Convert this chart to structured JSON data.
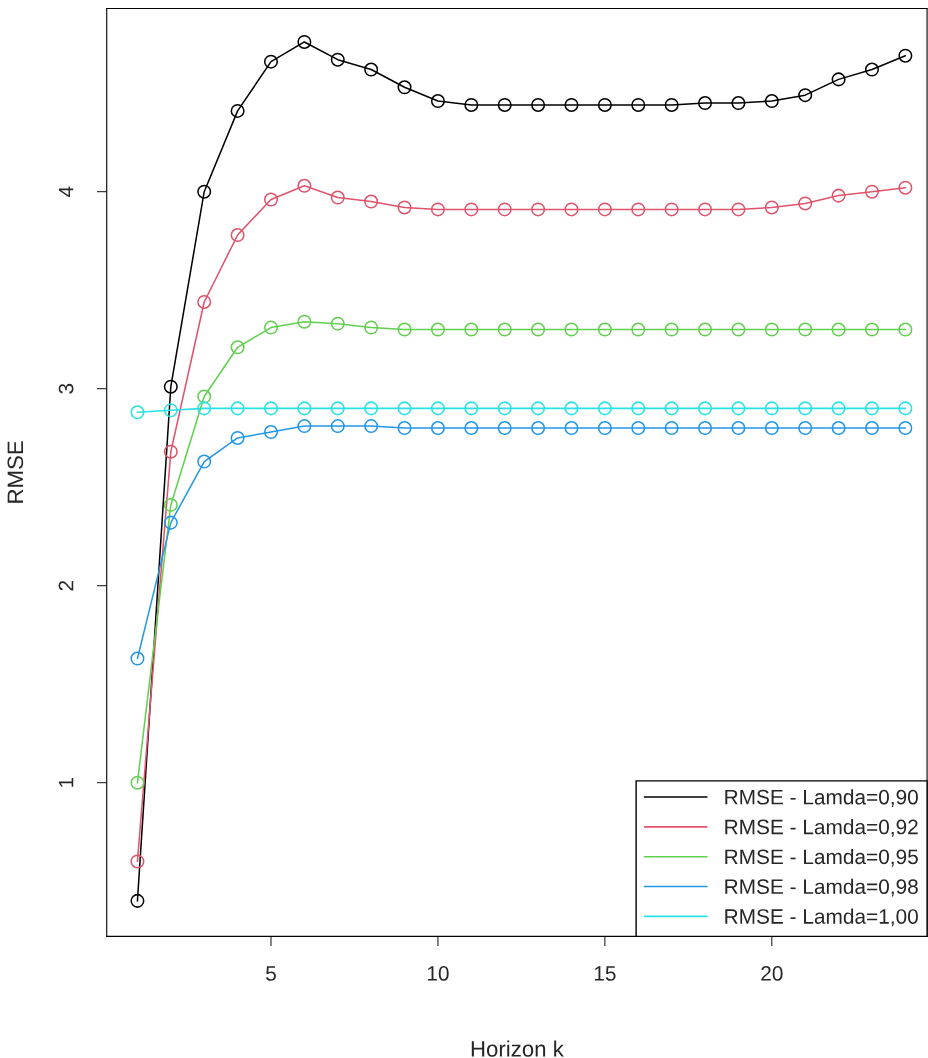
{
  "chart_data": {
    "type": "line",
    "xlabel": "Horizon k",
    "ylabel": "RMSE",
    "x": [
      1,
      2,
      3,
      4,
      5,
      6,
      7,
      8,
      9,
      10,
      11,
      12,
      13,
      14,
      15,
      16,
      17,
      18,
      19,
      20,
      21,
      22,
      23,
      24
    ],
    "series": [
      {
        "name": "RMSE - Lamda=0,90",
        "color": "#000000",
        "values": [
          0.4,
          3.01,
          4.0,
          4.41,
          4.66,
          4.76,
          4.67,
          4.62,
          4.53,
          4.46,
          4.44,
          4.44,
          4.44,
          4.44,
          4.44,
          4.44,
          4.44,
          4.45,
          4.45,
          4.46,
          4.49,
          4.57,
          4.62,
          4.69
        ]
      },
      {
        "name": "RMSE - Lamda=0,92",
        "color": "#df536b",
        "values": [
          0.6,
          2.68,
          3.44,
          3.78,
          3.96,
          4.03,
          3.97,
          3.95,
          3.92,
          3.91,
          3.91,
          3.91,
          3.91,
          3.91,
          3.91,
          3.91,
          3.91,
          3.91,
          3.91,
          3.92,
          3.94,
          3.98,
          4.0,
          4.02
        ]
      },
      {
        "name": "RMSE - Lamda=0,95",
        "color": "#61d04f",
        "values": [
          1.0,
          2.41,
          2.96,
          3.21,
          3.31,
          3.34,
          3.33,
          3.31,
          3.3,
          3.3,
          3.3,
          3.3,
          3.3,
          3.3,
          3.3,
          3.3,
          3.3,
          3.3,
          3.3,
          3.3,
          3.3,
          3.3,
          3.3,
          3.3
        ]
      },
      {
        "name": "RMSE - Lamda=0,98",
        "color": "#2297e6",
        "values": [
          1.63,
          2.32,
          2.63,
          2.75,
          2.78,
          2.81,
          2.81,
          2.81,
          2.8,
          2.8,
          2.8,
          2.8,
          2.8,
          2.8,
          2.8,
          2.8,
          2.8,
          2.8,
          2.8,
          2.8,
          2.8,
          2.8,
          2.8,
          2.8
        ]
      },
      {
        "name": "RMSE - Lamda=1,00",
        "color": "#28e2e5",
        "values": [
          2.88,
          2.89,
          2.9,
          2.9,
          2.9,
          2.9,
          2.9,
          2.9,
          2.9,
          2.9,
          2.9,
          2.9,
          2.9,
          2.9,
          2.9,
          2.9,
          2.9,
          2.9,
          2.9,
          2.9,
          2.9,
          2.9,
          2.9,
          2.9
        ]
      }
    ],
    "xlim": [
      0.08,
      24.65
    ],
    "ylim": [
      0.22,
      4.93
    ],
    "xticks": [
      5,
      10,
      15,
      20
    ],
    "yticks": [
      1,
      2,
      3,
      4
    ],
    "marker": "circle",
    "line_style": "solid",
    "grid": false,
    "legend": "bottom right"
  }
}
